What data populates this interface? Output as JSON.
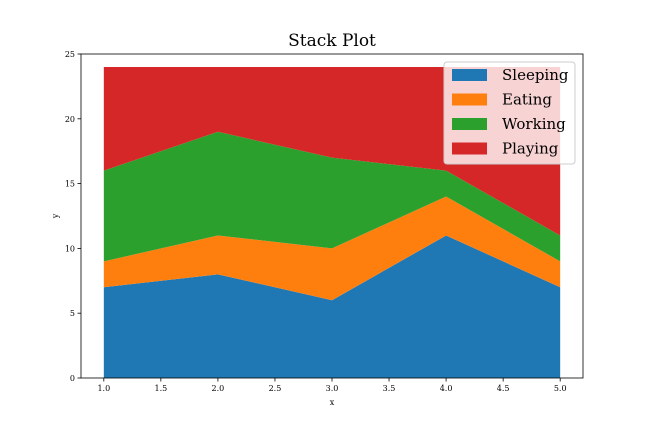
{
  "chart_data": {
    "type": "area",
    "title": "Stack Plot",
    "xlabel": "x",
    "ylabel": "y",
    "x": [
      1,
      2,
      3,
      4,
      5
    ],
    "xlim": [
      0.8,
      5.2
    ],
    "ylim": [
      0,
      25
    ],
    "xticks": [
      "1.0",
      "1.5",
      "2.0",
      "2.5",
      "3.0",
      "3.5",
      "4.0",
      "4.5",
      "5.0"
    ],
    "yticks": [
      "0",
      "5",
      "10",
      "15",
      "20",
      "25"
    ],
    "stacked": true,
    "grid": false,
    "legend_position": "top-right",
    "series": [
      {
        "name": "Sleeping",
        "color": "#1f77b4",
        "values": [
          7,
          8,
          6,
          11,
          7
        ]
      },
      {
        "name": "Eating",
        "color": "#ff7f0e",
        "values": [
          2,
          3,
          4,
          3,
          2
        ]
      },
      {
        "name": "Working",
        "color": "#2ca02c",
        "values": [
          7,
          8,
          7,
          2,
          2
        ]
      },
      {
        "name": "Playing",
        "color": "#d62728",
        "values": [
          8,
          5,
          7,
          8,
          13
        ]
      }
    ]
  }
}
